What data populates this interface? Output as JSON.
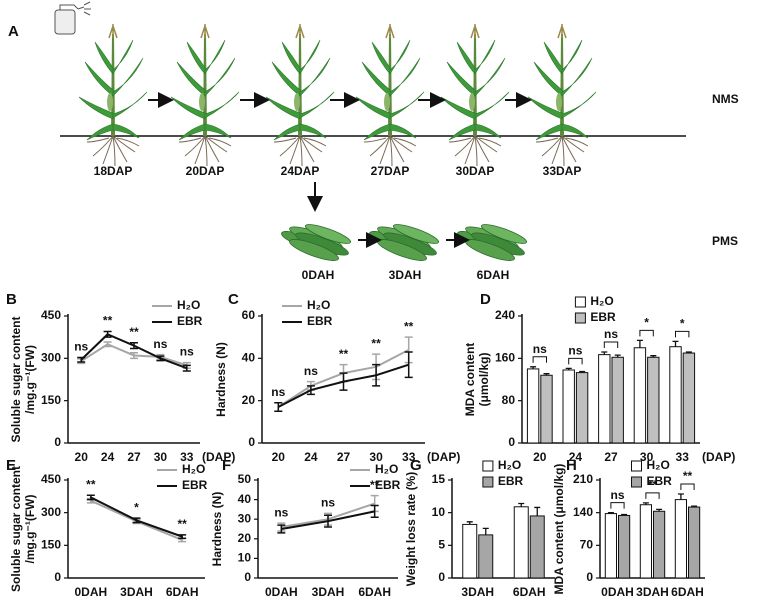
{
  "panel_a": {
    "label": "A",
    "stages": [
      "18DAP",
      "20DAP",
      "24DAP",
      "27DAP",
      "30DAP",
      "33DAP"
    ],
    "fruit_stages": [
      "0DAH",
      "3DAH",
      "6DAH"
    ],
    "row_labels": [
      "NMS",
      "PMS"
    ]
  },
  "chart_data": [
    {
      "type": "line",
      "panel": "B",
      "ylabel": [
        "Soluble sugar content",
        "/mg.g⁻¹(FW)"
      ],
      "xlabel": "(DAP)",
      "categories": [
        "20",
        "24",
        "27",
        "30",
        "33"
      ],
      "series": [
        {
          "name": "H₂O",
          "color": "#a6a6a6",
          "values": [
            290,
            350,
            310,
            305,
            275
          ],
          "errors": [
            8,
            8,
            10,
            8,
            10
          ]
        },
        {
          "name": "EBR",
          "color": "#111111",
          "values": [
            295,
            385,
            345,
            300,
            265
          ],
          "errors": [
            8,
            10,
            10,
            8,
            10
          ]
        }
      ],
      "annotations": [
        "ns",
        "**",
        "**",
        "ns",
        "ns"
      ],
      "ylim": [
        0,
        450
      ],
      "yticks": [
        0,
        150,
        300,
        450
      ],
      "legend": "upper right"
    },
    {
      "type": "line",
      "panel": "C",
      "ylabel": [
        "Hardness (N)"
      ],
      "xlabel": "(DAP)",
      "categories": [
        "20",
        "24",
        "27",
        "30",
        "33"
      ],
      "series": [
        {
          "name": "H₂O",
          "color": "#a6a6a6",
          "values": [
            17,
            27,
            33,
            36,
            44
          ],
          "errors": [
            2,
            2,
            4,
            6,
            6
          ]
        },
        {
          "name": "EBR",
          "color": "#111111",
          "values": [
            17,
            25,
            29,
            32,
            37
          ],
          "errors": [
            2,
            2,
            4,
            5,
            6
          ]
        }
      ],
      "annotations": [
        "ns",
        "ns",
        "**",
        "**",
        "**"
      ],
      "ylim": [
        0,
        60
      ],
      "yticks": [
        0,
        20,
        40,
        60
      ],
      "legend": "upper left"
    },
    {
      "type": "bar",
      "panel": "D",
      "ylabel": [
        "MDA content",
        "(μmol/kg)"
      ],
      "xlabel": "(DAP)",
      "categories": [
        "20",
        "24",
        "27",
        "30",
        "33"
      ],
      "series": [
        {
          "name": "H₂O",
          "color": "#ffffff",
          "values": [
            140,
            138,
            167,
            180,
            182
          ],
          "errors": [
            4,
            3,
            5,
            14,
            10
          ]
        },
        {
          "name": "EBR",
          "color": "#bfbfbf",
          "values": [
            128,
            133,
            162,
            162,
            170
          ],
          "errors": [
            3,
            2,
            4,
            3,
            2
          ]
        }
      ],
      "annotations": [
        "ns",
        "ns",
        "ns",
        "*",
        "*"
      ],
      "ylim": [
        0,
        240
      ],
      "yticks": [
        0,
        80,
        160,
        240
      ],
      "legend": "upper left"
    },
    {
      "type": "line",
      "panel": "E",
      "ylabel": [
        "Soluble sugar content",
        "/mg.g⁻¹(FW)"
      ],
      "categories": [
        "0DAH",
        "3DAH",
        "6DAH"
      ],
      "series": [
        {
          "name": "H₂O",
          "color": "#a6a6a6",
          "values": [
            355,
            260,
            175
          ],
          "errors": [
            10,
            10,
            8
          ]
        },
        {
          "name": "EBR",
          "color": "#111111",
          "values": [
            370,
            265,
            190
          ],
          "errors": [
            10,
            10,
            8
          ]
        }
      ],
      "annotations": [
        "**",
        "*",
        "**"
      ],
      "ylim": [
        0,
        450
      ],
      "yticks": [
        0,
        150,
        300,
        450
      ],
      "legend": "upper right"
    },
    {
      "type": "line",
      "panel": "F",
      "ylabel": [
        "Hardness (N)"
      ],
      "categories": [
        "0DAH",
        "3DAH",
        "6DAH"
      ],
      "series": [
        {
          "name": "H₂O",
          "color": "#a6a6a6",
          "values": [
            26,
            30,
            38
          ],
          "errors": [
            2,
            3,
            4
          ]
        },
        {
          "name": "EBR",
          "color": "#111111",
          "values": [
            25,
            29,
            34
          ],
          "errors": [
            2,
            3,
            3
          ]
        }
      ],
      "annotations": [
        "ns",
        "ns",
        "**"
      ],
      "ylim": [
        0,
        50
      ],
      "yticks": [
        0,
        10,
        20,
        30,
        40,
        50
      ],
      "legend": "upper right"
    },
    {
      "type": "bar",
      "panel": "G",
      "ylabel": [
        "Weight loss rate (%)"
      ],
      "categories": [
        "3DAH",
        "6DAH"
      ],
      "series": [
        {
          "name": "H₂O",
          "color": "#ffffff",
          "values": [
            8.2,
            10.9
          ],
          "errors": [
            0.4,
            0.5
          ]
        },
        {
          "name": "EBR",
          "color": "#a6a6a6",
          "values": [
            6.6,
            9.5
          ],
          "errors": [
            1.0,
            1.3
          ]
        }
      ],
      "ylim": [
        0,
        15
      ],
      "yticks": [
        0,
        5,
        10,
        15
      ],
      "legend": "upper left"
    },
    {
      "type": "bar",
      "panel": "H",
      "ylabel": [
        "MDA content (μmol/kg)"
      ],
      "categories": [
        "0DAH",
        "3DAH",
        "6DAH"
      ],
      "series": [
        {
          "name": "H₂O",
          "color": "#ffffff",
          "values": [
            138,
            157,
            168
          ],
          "errors": [
            2,
            4,
            12
          ]
        },
        {
          "name": "EBR",
          "color": "#a6a6a6",
          "values": [
            134,
            143,
            152
          ],
          "errors": [
            2,
            4,
            2
          ]
        }
      ],
      "annotations": [
        "ns",
        "**",
        "**"
      ],
      "ylim": [
        0,
        210
      ],
      "yticks": [
        0,
        70,
        140,
        210
      ],
      "legend": "upper left"
    }
  ]
}
